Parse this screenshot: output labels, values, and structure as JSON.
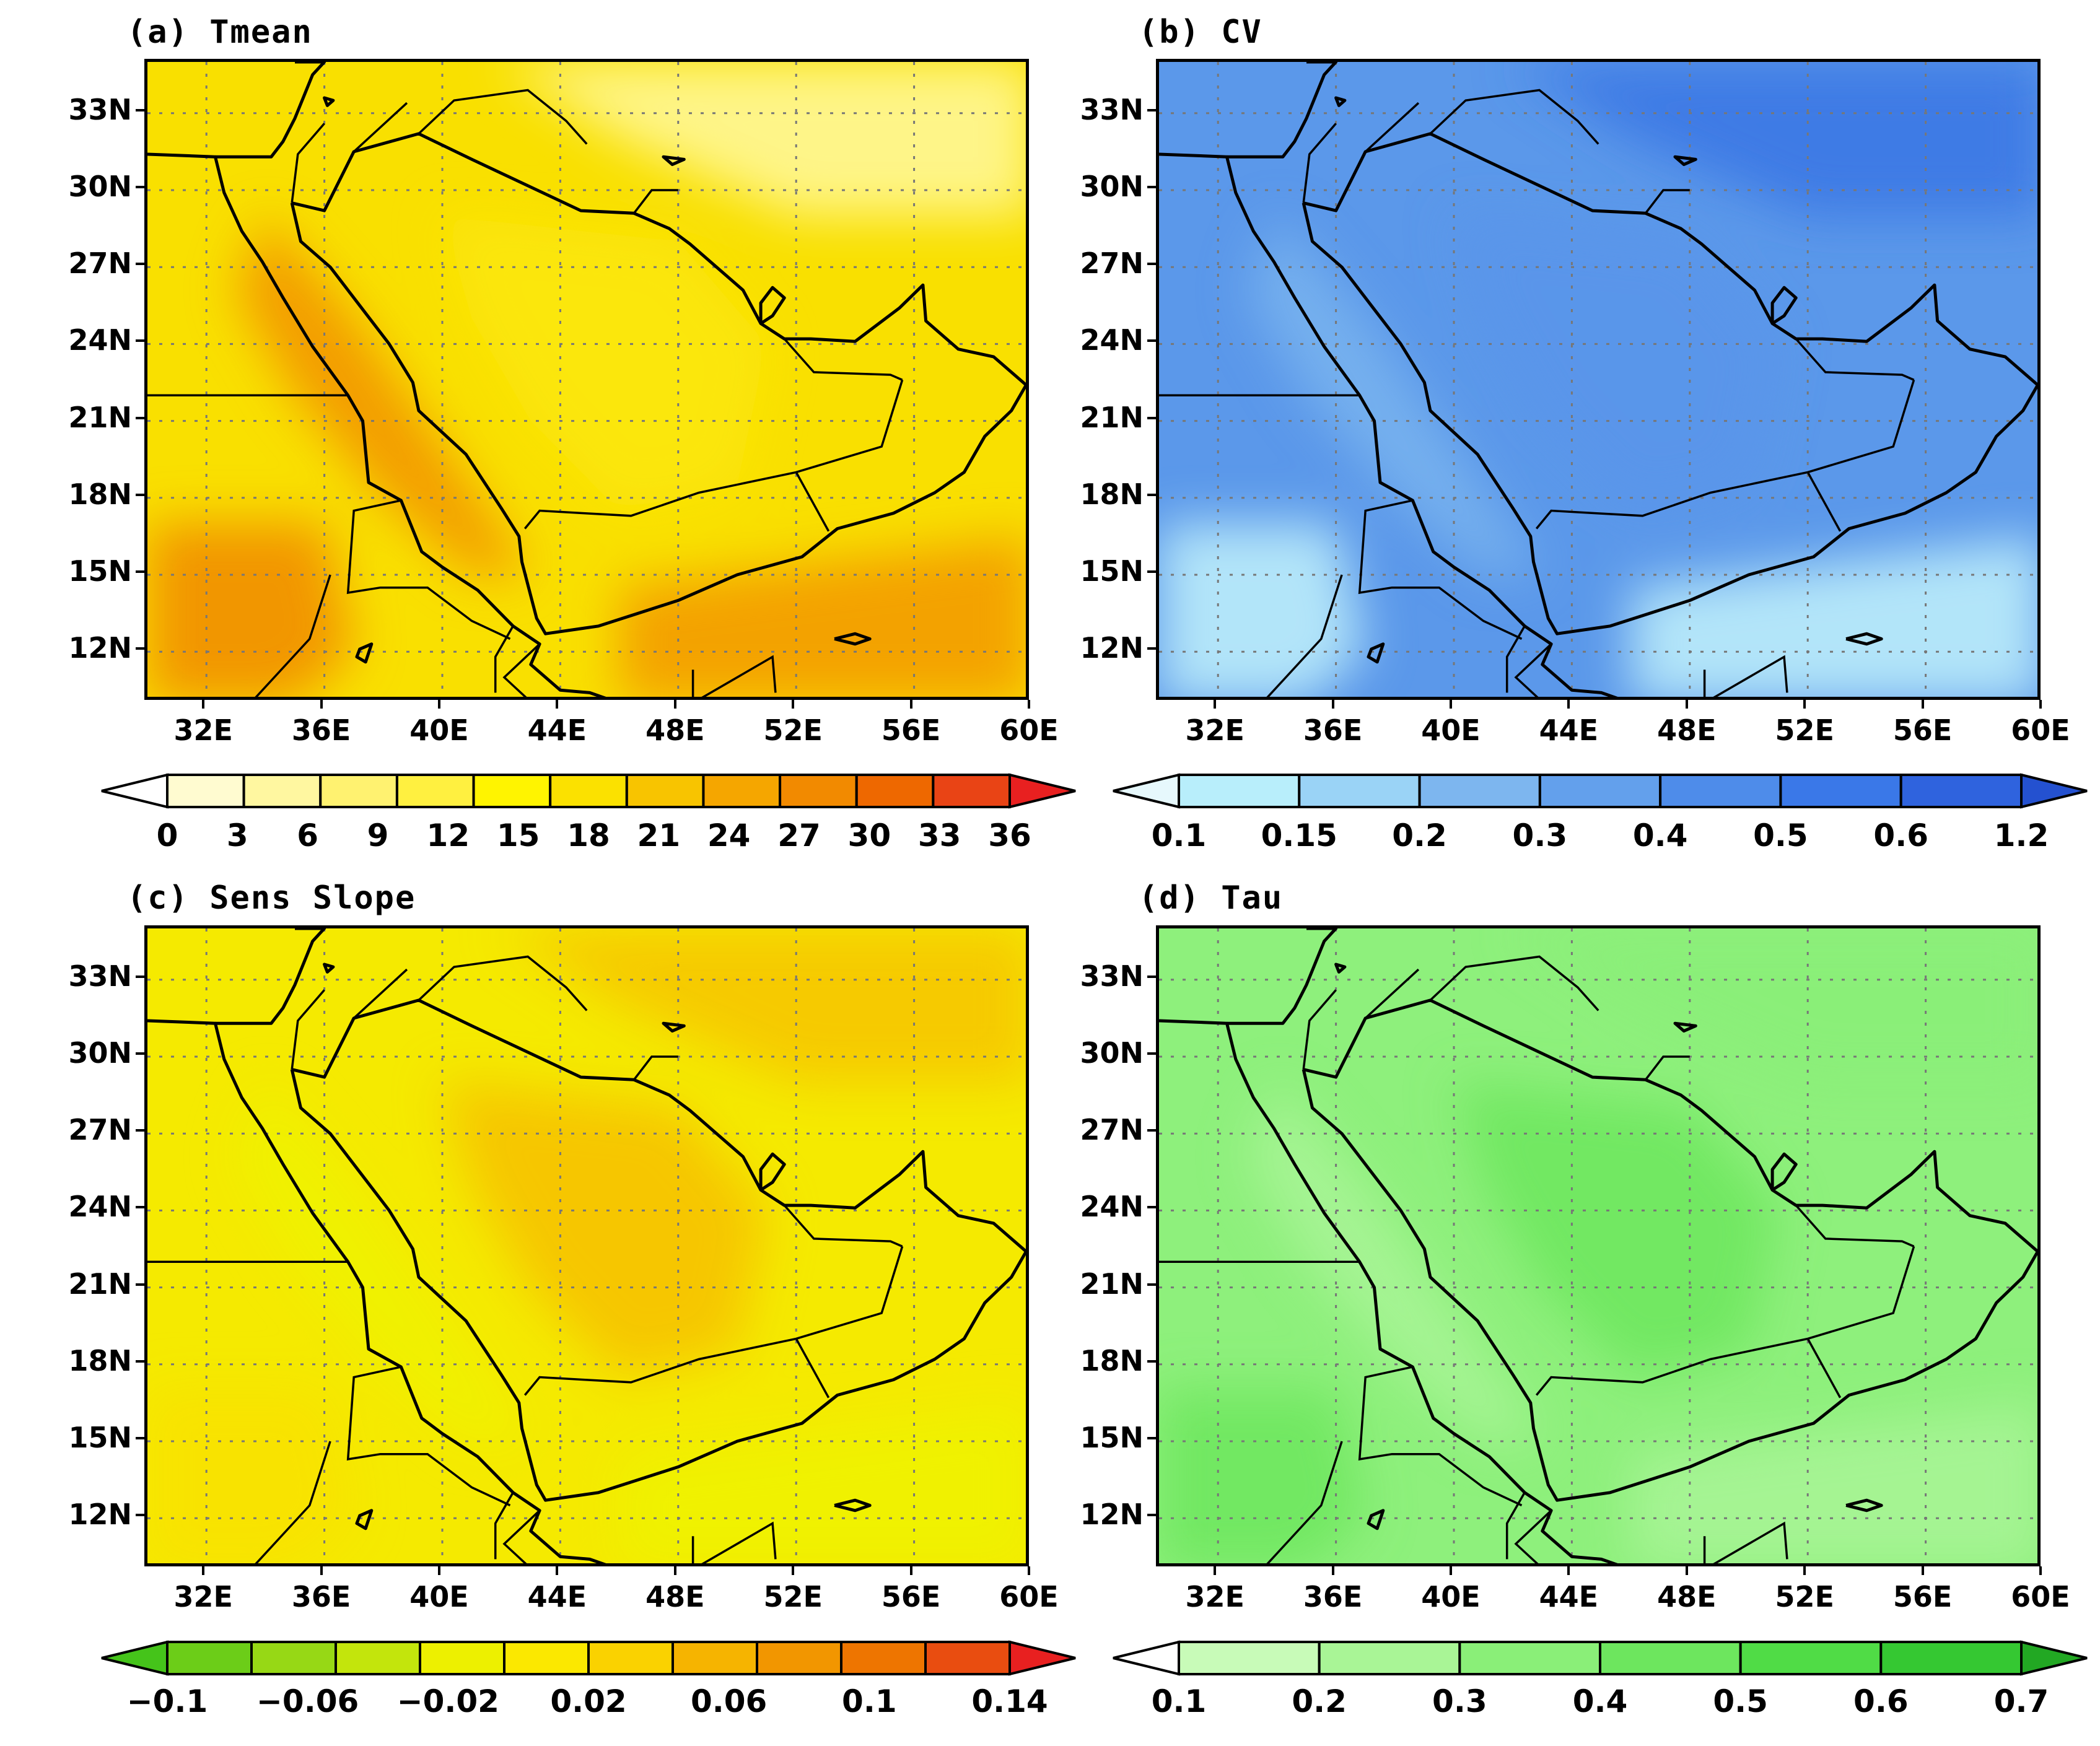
{
  "panels": [
    {
      "id": "a",
      "title": "(a) Tmean",
      "lat_labels": [
        "33N",
        "30N",
        "27N",
        "24N",
        "21N",
        "18N",
        "15N",
        "12N"
      ],
      "lon_labels": [
        "32E",
        "36E",
        "40E",
        "44E",
        "48E",
        "52E",
        "56E",
        "60E"
      ],
      "colorbar": {
        "labels": [
          "0",
          "3",
          "6",
          "9",
          "12",
          "15",
          "18",
          "21",
          "24",
          "27",
          "30",
          "33",
          "36"
        ],
        "colors": [
          "#ffffff",
          "#fffbd0",
          "#fff7a0",
          "#fff270",
          "#fff040",
          "#fff400",
          "#fbe100",
          "#f8c400",
          "#f5a600",
          "#f28a00",
          "#ee6800",
          "#e94415",
          "#e82020"
        ]
      },
      "fill_color": "#f9e000",
      "region_colors": {
        "east_sea": "#f29600",
        "red_sea": "#f19000",
        "horn": "#f08800",
        "north": "#fff8a0",
        "interior": "#fbe80a"
      }
    },
    {
      "id": "b",
      "title": "(b) CV",
      "lat_labels": [
        "33N",
        "30N",
        "27N",
        "24N",
        "21N",
        "18N",
        "15N",
        "12N"
      ],
      "lon_labels": [
        "32E",
        "36E",
        "40E",
        "44E",
        "48E",
        "52E",
        "56E",
        "60E"
      ],
      "colorbar": {
        "labels": [
          "0.1",
          "0.15",
          "0.2",
          "0.3",
          "0.4",
          "0.5",
          "0.6",
          "1.2"
        ],
        "colors": [
          "#e6f8fc",
          "#b8eefb",
          "#9ad3f6",
          "#7db6ef",
          "#63a0ec",
          "#4e8cea",
          "#3a78e8",
          "#2f63de",
          "#2451d0"
        ]
      },
      "fill_color": "#5b98ea",
      "region_colors": {
        "east_sea": "#c2f2fb",
        "red_sea": "#7ab4ee",
        "horn": "#c2f2fb",
        "north": "#3a76e4",
        "interior": "#5a95ea"
      }
    },
    {
      "id": "c",
      "title": "(c) Sens Slope",
      "lat_labels": [
        "33N",
        "30N",
        "27N",
        "24N",
        "21N",
        "18N",
        "15N",
        "12N"
      ],
      "lon_labels": [
        "32E",
        "36E",
        "40E",
        "44E",
        "48E",
        "52E",
        "56E",
        "60E"
      ],
      "colorbar": {
        "labels": [
          "−0.1",
          "−0.06",
          "−0.02",
          "0.02",
          "0.06",
          "0.1",
          "0.14"
        ],
        "colors": [
          "#45c41a",
          "#6ccd18",
          "#97d815",
          "#c3e50c",
          "#edf000",
          "#fbe800",
          "#fad200",
          "#f6b400",
          "#f29600",
          "#ee7500",
          "#e94d10",
          "#e82020"
        ]
      },
      "fill_color": "#f5ea00",
      "region_colors": {
        "east_sea": "#eef200",
        "red_sea": "#eef200",
        "horn": "#f8e200",
        "north": "#f6c400",
        "interior": "#f6bf00"
      }
    },
    {
      "id": "d",
      "title": "(d) Tau",
      "lat_labels": [
        "33N",
        "30N",
        "27N",
        "24N",
        "21N",
        "18N",
        "15N",
        "12N"
      ],
      "lon_labels": [
        "32E",
        "36E",
        "40E",
        "44E",
        "48E",
        "52E",
        "56E",
        "60E"
      ],
      "colorbar": {
        "labels": [
          "0.1",
          "0.2",
          "0.3",
          "0.4",
          "0.5",
          "0.6",
          "0.7"
        ],
        "colors": [
          "#ffffff",
          "#c8fbb8",
          "#a9f596",
          "#8aef78",
          "#6de65e",
          "#50dc46",
          "#35c832",
          "#22a823"
        ]
      },
      "fill_color": "#8ef07c",
      "region_colors": {
        "east_sea": "#a9f596",
        "red_sea": "#a9f596",
        "horn": "#6de65e",
        "north": "#8aef78",
        "interior": "#6de65e"
      }
    }
  ]
}
